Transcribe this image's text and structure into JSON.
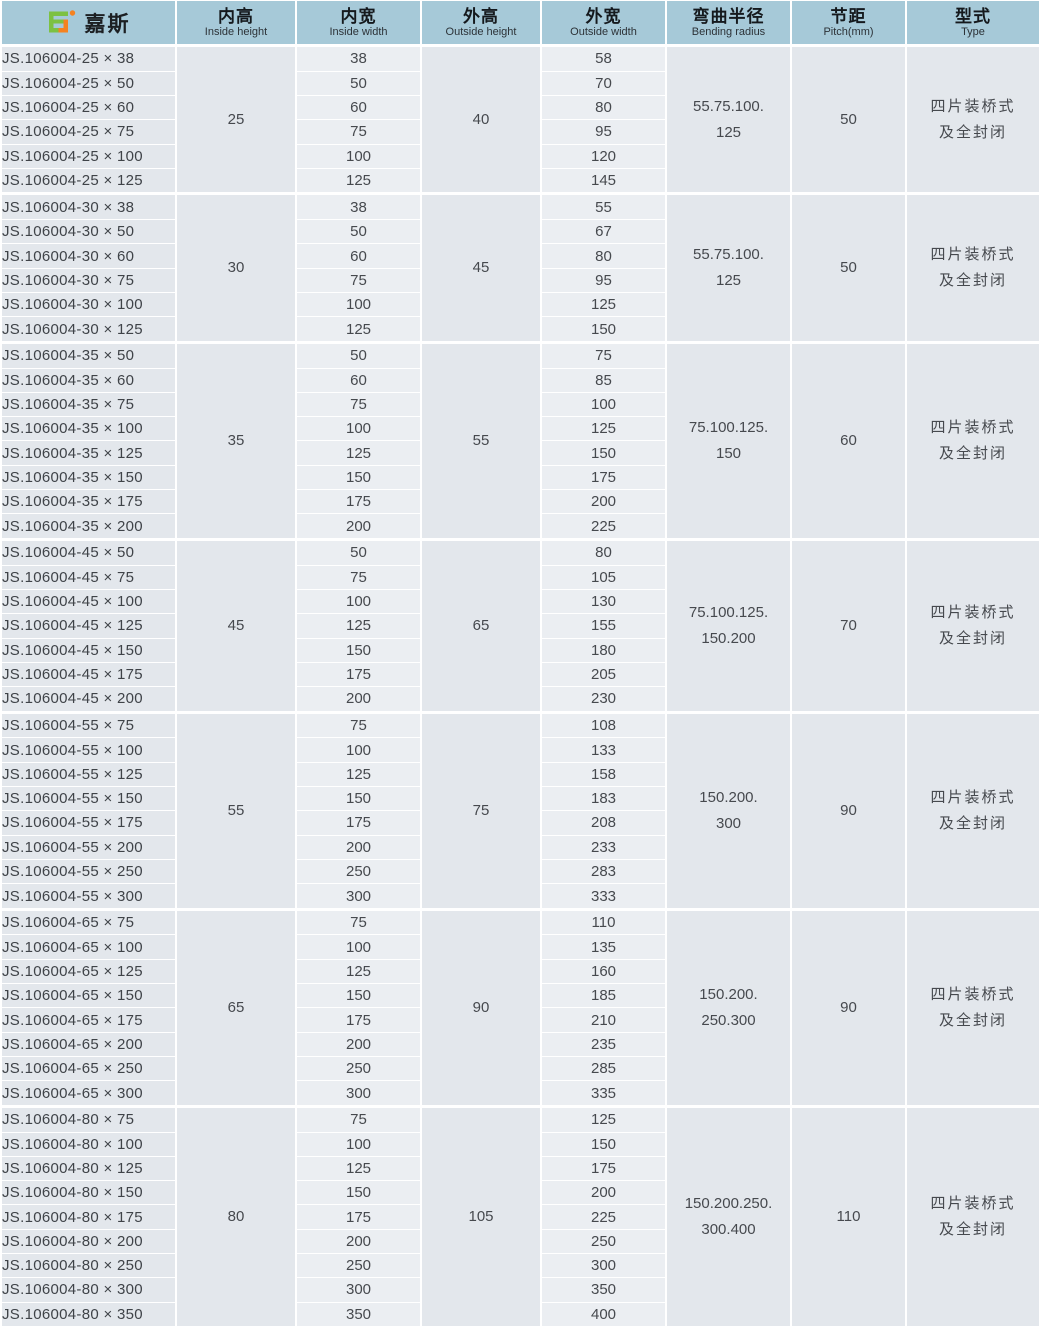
{
  "header": {
    "brand": "嘉斯",
    "columns": [
      {
        "zh": "内高",
        "en": "Inside height"
      },
      {
        "zh": "内宽",
        "en": "Inside width"
      },
      {
        "zh": "外高",
        "en": "Outside height"
      },
      {
        "zh": "外宽",
        "en": "Outside width"
      },
      {
        "zh": "弯曲半径",
        "en": "Bending radius"
      },
      {
        "zh": "节距",
        "en": "Pitch(mm)"
      },
      {
        "zh": "型式",
        "en": "Type"
      }
    ]
  },
  "colors": {
    "header_bg": "#a6c9d8",
    "cell_bg": "#e3e7ec",
    "cell_bg_light": "#ebeef2",
    "grid": "#ffffff",
    "logo_green": "#7cc142",
    "logo_orange": "#f58220"
  },
  "groups": [
    {
      "inside_height": "25",
      "outside_height": "40",
      "bending_radius_lines": [
        "55.75.100.",
        "125"
      ],
      "pitch": "50",
      "type_lines": [
        "四片装桥式",
        "及全封闭"
      ],
      "rows": [
        {
          "model": "JS.106004-25 × 38",
          "inside_width": "38",
          "outside_width": "58"
        },
        {
          "model": "JS.106004-25 × 50",
          "inside_width": "50",
          "outside_width": "70"
        },
        {
          "model": "JS.106004-25 × 60",
          "inside_width": "60",
          "outside_width": "80"
        },
        {
          "model": "JS.106004-25 × 75",
          "inside_width": "75",
          "outside_width": "95"
        },
        {
          "model": "JS.106004-25 × 100",
          "inside_width": "100",
          "outside_width": "120"
        },
        {
          "model": "JS.106004-25 × 125",
          "inside_width": "125",
          "outside_width": "145"
        }
      ]
    },
    {
      "inside_height": "30",
      "outside_height": "45",
      "bending_radius_lines": [
        "55.75.100.",
        "125"
      ],
      "pitch": "50",
      "type_lines": [
        "四片装桥式",
        "及全封闭"
      ],
      "rows": [
        {
          "model": "JS.106004-30 × 38",
          "inside_width": "38",
          "outside_width": "55"
        },
        {
          "model": "JS.106004-30 × 50",
          "inside_width": "50",
          "outside_width": "67"
        },
        {
          "model": "JS.106004-30 × 60",
          "inside_width": "60",
          "outside_width": "80"
        },
        {
          "model": "JS.106004-30 × 75",
          "inside_width": "75",
          "outside_width": "95"
        },
        {
          "model": "JS.106004-30 × 100",
          "inside_width": "100",
          "outside_width": "125"
        },
        {
          "model": "JS.106004-30 × 125",
          "inside_width": "125",
          "outside_width": "150"
        }
      ]
    },
    {
      "inside_height": "35",
      "outside_height": "55",
      "bending_radius_lines": [
        "75.100.125.",
        "150"
      ],
      "pitch": "60",
      "type_lines": [
        "四片装桥式",
        "及全封闭"
      ],
      "rows": [
        {
          "model": "JS.106004-35 × 50",
          "inside_width": "50",
          "outside_width": "75"
        },
        {
          "model": "JS.106004-35 × 60",
          "inside_width": "60",
          "outside_width": "85"
        },
        {
          "model": "JS.106004-35 × 75",
          "inside_width": "75",
          "outside_width": "100"
        },
        {
          "model": "JS.106004-35 × 100",
          "inside_width": "100",
          "outside_width": "125"
        },
        {
          "model": "JS.106004-35 × 125",
          "inside_width": "125",
          "outside_width": "150"
        },
        {
          "model": "JS.106004-35 × 150",
          "inside_width": "150",
          "outside_width": "175"
        },
        {
          "model": "JS.106004-35 × 175",
          "inside_width": "175",
          "outside_width": "200"
        },
        {
          "model": "JS.106004-35 × 200",
          "inside_width": "200",
          "outside_width": "225"
        }
      ]
    },
    {
      "inside_height": "45",
      "outside_height": "65",
      "bending_radius_lines": [
        "75.100.125.",
        "150.200"
      ],
      "pitch": "70",
      "type_lines": [
        "四片装桥式",
        "及全封闭"
      ],
      "rows": [
        {
          "model": "JS.106004-45 × 50",
          "inside_width": "50",
          "outside_width": "80"
        },
        {
          "model": "JS.106004-45 × 75",
          "inside_width": "75",
          "outside_width": "105"
        },
        {
          "model": "JS.106004-45 × 100",
          "inside_width": "100",
          "outside_width": "130"
        },
        {
          "model": "JS.106004-45 × 125",
          "inside_width": "125",
          "outside_width": "155"
        },
        {
          "model": "JS.106004-45 × 150",
          "inside_width": "150",
          "outside_width": "180"
        },
        {
          "model": "JS.106004-45 × 175",
          "inside_width": "175",
          "outside_width": "205"
        },
        {
          "model": "JS.106004-45 × 200",
          "inside_width": "200",
          "outside_width": "230"
        }
      ]
    },
    {
      "inside_height": "55",
      "outside_height": "75",
      "bending_radius_lines": [
        "150.200.",
        "300"
      ],
      "pitch": "90",
      "type_lines": [
        "四片装桥式",
        "及全封闭"
      ],
      "rows": [
        {
          "model": "JS.106004-55 × 75",
          "inside_width": "75",
          "outside_width": "108"
        },
        {
          "model": "JS.106004-55 × 100",
          "inside_width": "100",
          "outside_width": "133"
        },
        {
          "model": "JS.106004-55 × 125",
          "inside_width": "125",
          "outside_width": "158"
        },
        {
          "model": "JS.106004-55 × 150",
          "inside_width": "150",
          "outside_width": "183"
        },
        {
          "model": "JS.106004-55 × 175",
          "inside_width": "175",
          "outside_width": "208"
        },
        {
          "model": "JS.106004-55 × 200",
          "inside_width": "200",
          "outside_width": "233"
        },
        {
          "model": "JS.106004-55 × 250",
          "inside_width": "250",
          "outside_width": "283"
        },
        {
          "model": "JS.106004-55 × 300",
          "inside_width": "300",
          "outside_width": "333"
        }
      ]
    },
    {
      "inside_height": "65",
      "outside_height": "90",
      "bending_radius_lines": [
        "150.200.",
        "250.300"
      ],
      "pitch": "90",
      "type_lines": [
        "四片装桥式",
        "及全封闭"
      ],
      "rows": [
        {
          "model": "JS.106004-65 × 75",
          "inside_width": "75",
          "outside_width": "110"
        },
        {
          "model": "JS.106004-65 × 100",
          "inside_width": "100",
          "outside_width": "135"
        },
        {
          "model": "JS.106004-65 × 125",
          "inside_width": "125",
          "outside_width": "160"
        },
        {
          "model": "JS.106004-65 × 150",
          "inside_width": "150",
          "outside_width": "185"
        },
        {
          "model": "JS.106004-65 × 175",
          "inside_width": "175",
          "outside_width": "210"
        },
        {
          "model": "JS.106004-65 × 200",
          "inside_width": "200",
          "outside_width": "235"
        },
        {
          "model": "JS.106004-65 × 250",
          "inside_width": "250",
          "outside_width": "285"
        },
        {
          "model": "JS.106004-65 × 300",
          "inside_width": "300",
          "outside_width": "335"
        }
      ]
    },
    {
      "inside_height": "80",
      "outside_height": "105",
      "bending_radius_lines": [
        "150.200.250.",
        "300.400"
      ],
      "pitch": "110",
      "type_lines": [
        "四片装桥式",
        "及全封闭"
      ],
      "rows": [
        {
          "model": "JS.106004-80 × 75",
          "inside_width": "75",
          "outside_width": "125"
        },
        {
          "model": "JS.106004-80 × 100",
          "inside_width": "100",
          "outside_width": "150"
        },
        {
          "model": "JS.106004-80 × 125",
          "inside_width": "125",
          "outside_width": "175"
        },
        {
          "model": "JS.106004-80 × 150",
          "inside_width": "150",
          "outside_width": "200"
        },
        {
          "model": "JS.106004-80 × 175",
          "inside_width": "175",
          "outside_width": "225"
        },
        {
          "model": "JS.106004-80 × 200",
          "inside_width": "200",
          "outside_width": "250"
        },
        {
          "model": "JS.106004-80 × 250",
          "inside_width": "250",
          "outside_width": "300"
        },
        {
          "model": "JS.106004-80 × 300",
          "inside_width": "300",
          "outside_width": "350"
        },
        {
          "model": "JS.106004-80 × 350",
          "inside_width": "350",
          "outside_width": "400"
        }
      ]
    }
  ]
}
